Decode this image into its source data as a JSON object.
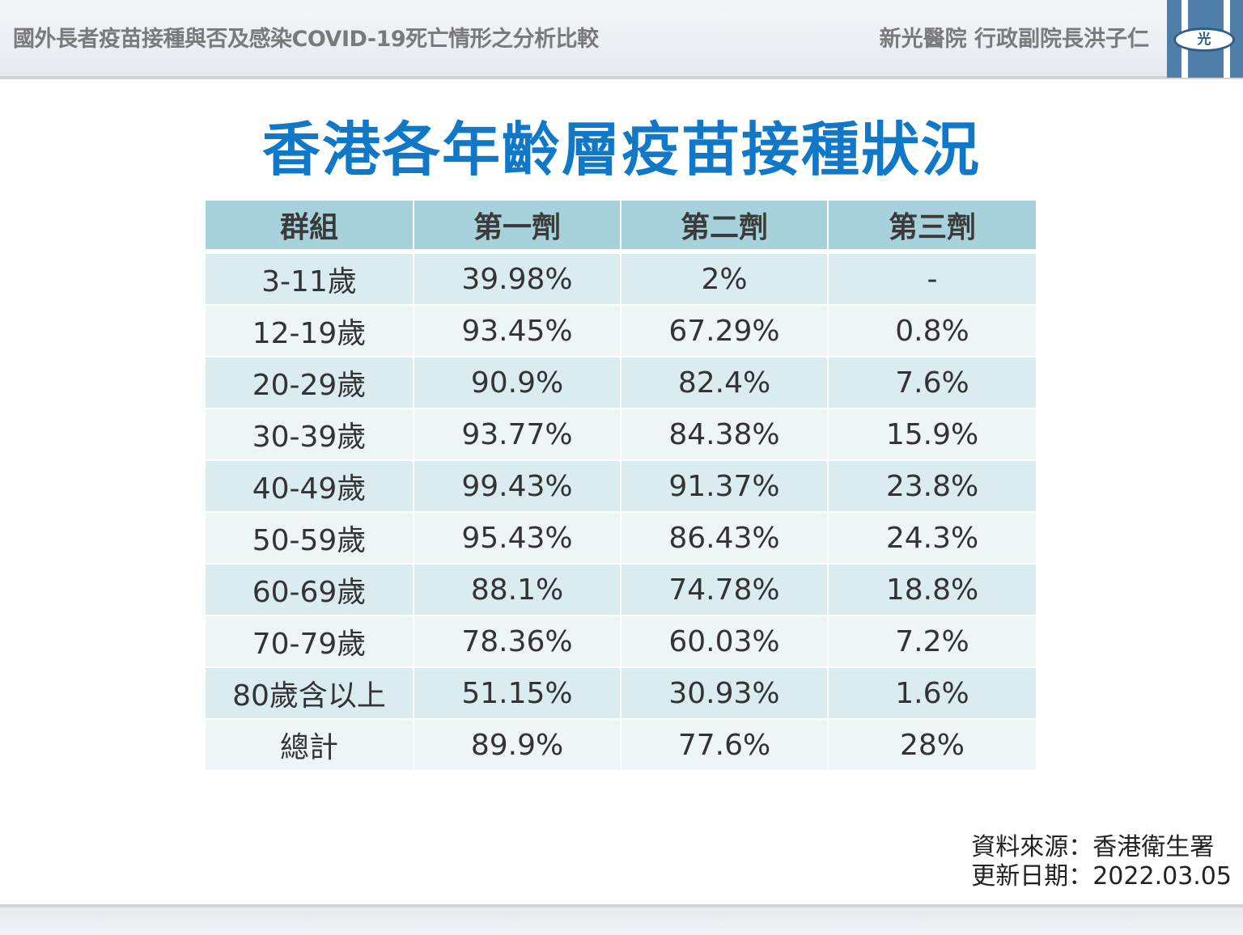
{
  "header": {
    "left_title": "國外長者疫苗接種與否及感染COVID-19死亡情形之分析比較",
    "right_title": "新光醫院 行政副院長洪子仁",
    "logo_text": "光",
    "logo_icon": "hospital-logo"
  },
  "title": "香港各年齡層疫苗接種狀況",
  "table": {
    "headers": [
      "群組",
      "第一劑",
      "第二劑",
      "第三劑"
    ],
    "rows": [
      [
        "3-11歲",
        "39.98%",
        "2%",
        "-"
      ],
      [
        "12-19歲",
        "93.45%",
        "67.29%",
        "0.8%"
      ],
      [
        "20-29歲",
        "90.9%",
        "82.4%",
        "7.6%"
      ],
      [
        "30-39歲",
        "93.77%",
        "84.38%",
        "15.9%"
      ],
      [
        "40-49歲",
        "99.43%",
        "91.37%",
        "23.8%"
      ],
      [
        "50-59歲",
        "95.43%",
        "86.43%",
        "24.3%"
      ],
      [
        "60-69歲",
        "88.1%",
        "74.78%",
        "18.8%"
      ],
      [
        "70-79歲",
        "78.36%",
        "60.03%",
        "7.2%"
      ],
      [
        "80歲含以上",
        "51.15%",
        "30.93%",
        "1.6%"
      ],
      [
        "總計",
        "89.9%",
        "77.6%",
        "28%"
      ]
    ]
  },
  "source": {
    "source_line": "資料來源：香港衛生署",
    "update_line": "更新日期：2022.03.05"
  },
  "colors": {
    "title": "#1178c8",
    "header_bg": "#a7d1db",
    "row_odd": "#dbecf0",
    "row_even": "#edf5f7"
  }
}
